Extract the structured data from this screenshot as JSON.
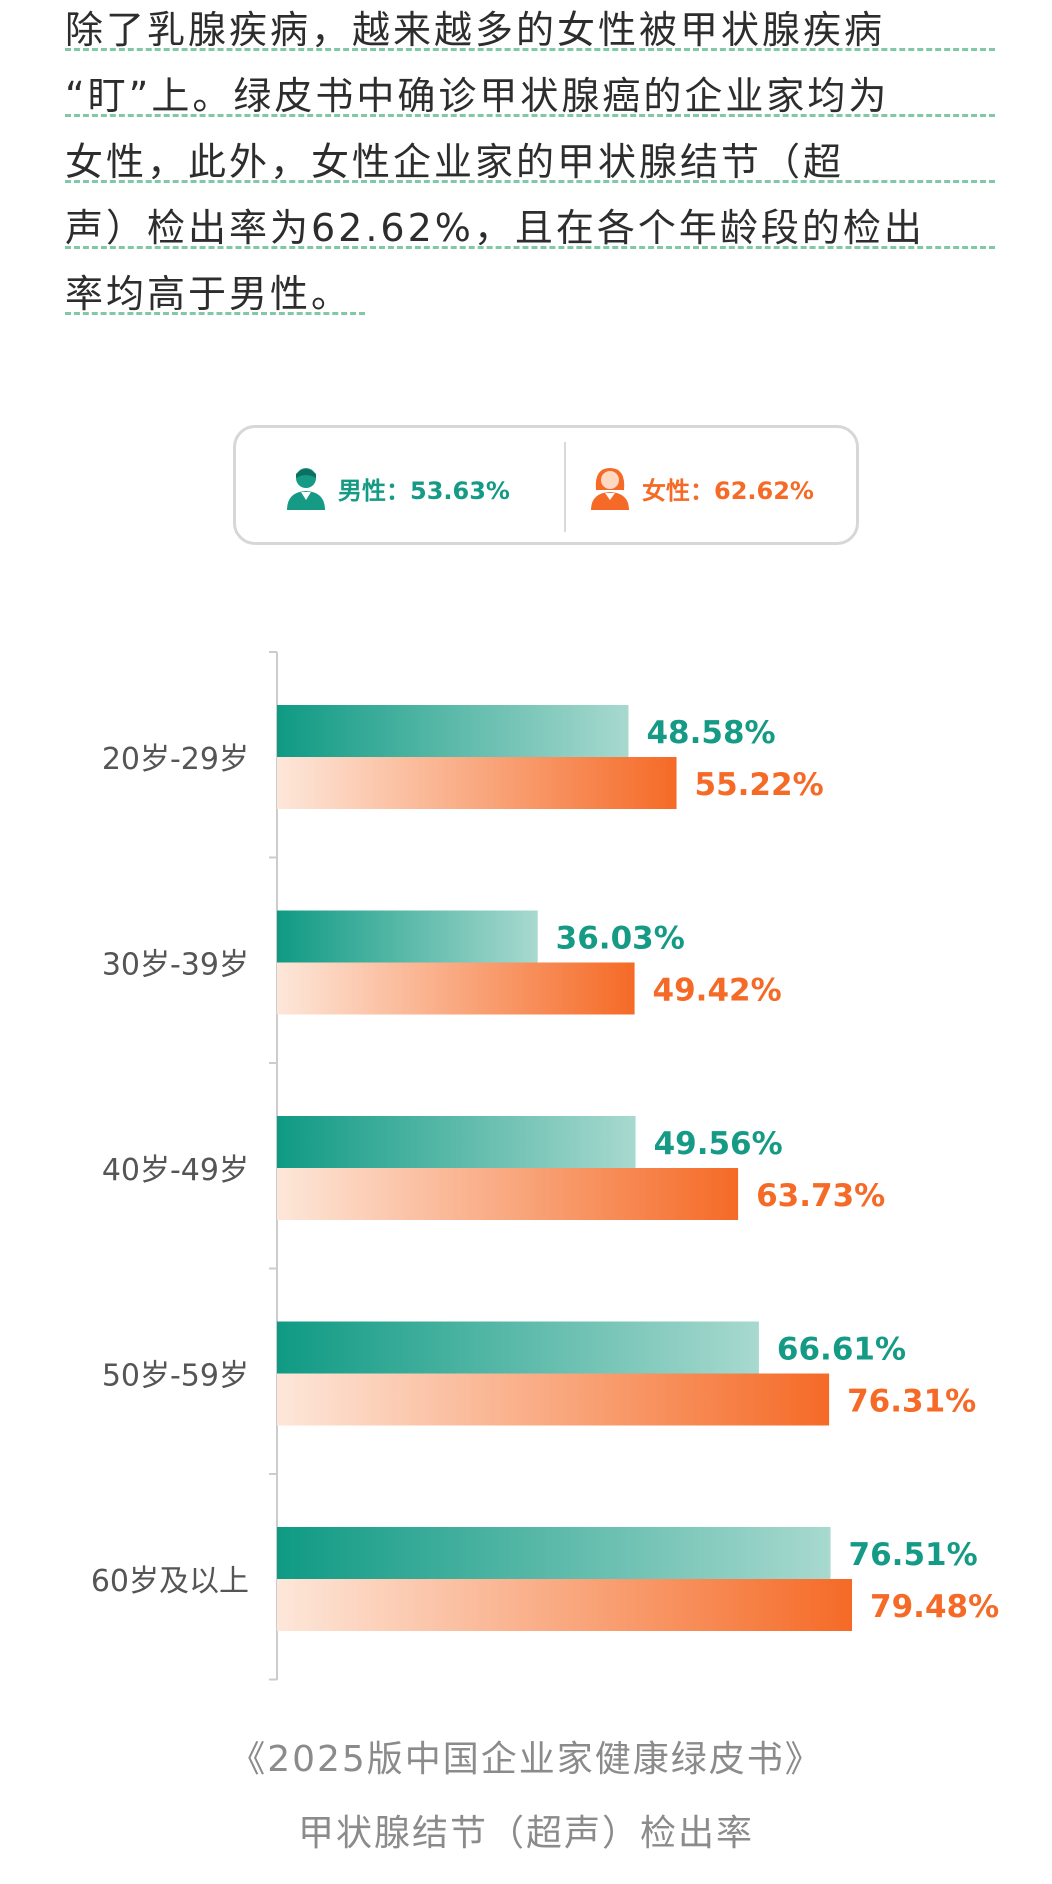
{
  "paragraph": {
    "lines": [
      "除了乳腺疾病，越来越多的女性被甲状腺疾病",
      "“盯”上。绿皮书中确诊甲状腺癌的企业家均为",
      "女性，此外，女性企业家的甲状腺结节（超",
      "声）检出率为62.62%，且在各个年龄段的检出",
      "率均高于男性。"
    ]
  },
  "legend": {
    "male": {
      "label": "男性：53.63%",
      "value": 53.63,
      "icon": "male-person-icon"
    },
    "female": {
      "label": "女性：62.62%",
      "value": 62.62,
      "icon": "female-person-icon"
    }
  },
  "colors": {
    "male": "#149a85",
    "female": "#f56a26",
    "text": "#2d2d2d",
    "axis": "#cccccc",
    "caption": "#8b8b8b",
    "dash": "#7fc9a9"
  },
  "chart_data": {
    "type": "bar",
    "orientation": "horizontal",
    "categories": [
      "20岁-29岁",
      "30岁-39岁",
      "40岁-49岁",
      "50岁-59岁",
      "60岁及以上"
    ],
    "series": [
      {
        "name": "男性",
        "values": [
          48.58,
          36.03,
          49.56,
          66.61,
          76.51
        ],
        "labels": [
          "48.58%",
          "36.03%",
          "49.56%",
          "66.61%",
          "76.51%"
        ]
      },
      {
        "name": "女性",
        "values": [
          55.22,
          49.42,
          63.73,
          76.31,
          79.48
        ],
        "labels": [
          "55.22%",
          "49.42%",
          "63.73%",
          "76.31%",
          "79.48%"
        ]
      }
    ],
    "xlim": [
      0,
      100
    ],
    "legend": "top-center"
  },
  "caption": {
    "line1": "《2025版中国企业家健康绿皮书》",
    "line2": "甲状腺结节（超声）检出率"
  }
}
